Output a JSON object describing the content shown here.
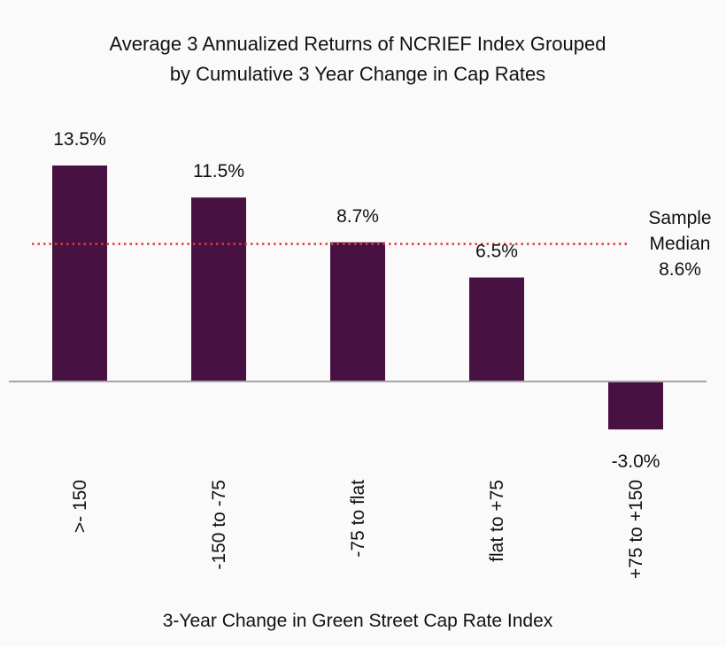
{
  "chart_data": {
    "type": "bar",
    "title_lines": [
      "Average 3 Annualized Returns of NCRIEF Index Grouped",
      "by Cumulative 3 Year Change in Cap Rates"
    ],
    "categories": [
      ">- 150",
      "-150 to -75",
      "-75 to flat",
      "flat to +75",
      "+75 to +150"
    ],
    "values": [
      13.5,
      11.5,
      8.7,
      6.5,
      -3.0
    ],
    "value_labels": [
      "13.5%",
      "11.5%",
      "8.7%",
      "6.5%",
      "-3.0%"
    ],
    "xlabel": "3-Year Change in Green Street Cap Rate Index",
    "ylabel": "",
    "ylim": [
      -3.0,
      13.5
    ],
    "reference_line": {
      "value": 8.6,
      "label_lines": [
        "Sample",
        "Median",
        "8.6%"
      ],
      "style": "dotted",
      "color": "#e03a3a"
    },
    "grid": false,
    "legend": "none",
    "colors": {
      "bar": "#471241",
      "zero_line": "#a6a6a6",
      "text": "#111111",
      "background": "#fafafa"
    }
  }
}
